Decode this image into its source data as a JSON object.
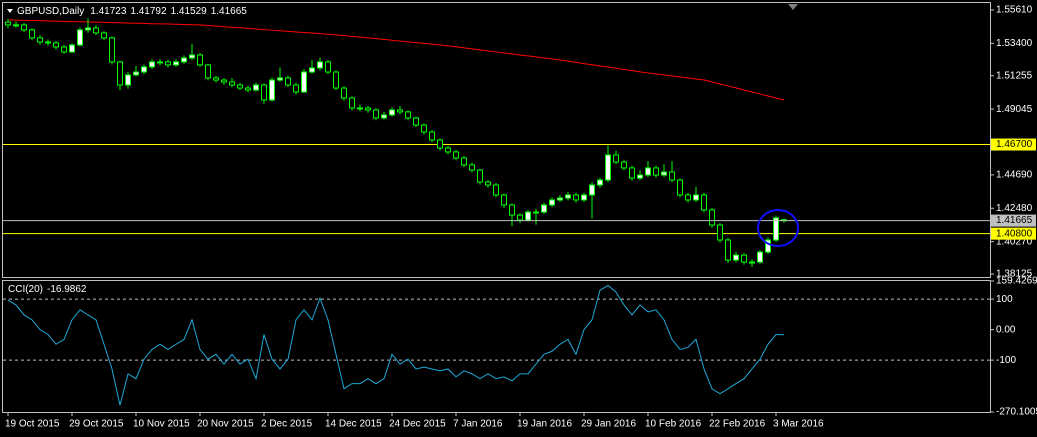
{
  "chart_data": [
    {
      "type": "candlestick",
      "title": "GBPUSD,Daily",
      "open": [
        1.548,
        1.5462,
        1.5462,
        1.5429,
        1.5376,
        1.5349,
        1.5343,
        1.5316,
        1.5283,
        1.5329,
        1.5429,
        1.5442,
        1.5409,
        1.5376,
        1.5217,
        1.5064,
        1.5131,
        1.515,
        1.5184,
        1.5217,
        1.5217,
        1.5197,
        1.5217,
        1.5243,
        1.5263,
        1.5197,
        1.5111,
        1.5097,
        1.5084,
        1.5064,
        1.5044,
        1.5031,
        1.5064,
        1.4965,
        1.5097,
        1.5111,
        1.5064,
        1.5018,
        1.515,
        1.5177,
        1.5217,
        1.515,
        1.5044,
        1.4978,
        1.4912,
        1.4912,
        1.4899,
        1.4846,
        1.4866,
        1.4899,
        1.4886,
        1.4846,
        1.4799,
        1.4753,
        1.47,
        1.4647,
        1.4621,
        1.4581,
        1.4535,
        1.4501,
        1.4422,
        1.4402,
        1.4336,
        1.427,
        1.4203,
        1.417,
        1.4223,
        1.4223,
        1.427,
        1.4303,
        1.4316,
        1.4336,
        1.4303,
        1.4336,
        1.4402,
        1.4435,
        1.4601,
        1.4554,
        1.4515,
        1.4448,
        1.4468,
        1.4515,
        1.4468,
        1.4488,
        1.4435,
        1.4336,
        1.4303,
        1.4336,
        1.4237,
        1.4137,
        1.4038,
        1.3905,
        1.3938,
        1.3892,
        1.3892,
        1.3958,
        1.4038,
        1.41723
      ],
      "high": [
        1.55,
        1.5485,
        1.5475,
        1.544,
        1.5395,
        1.5365,
        1.5355,
        1.533,
        1.534,
        1.5445,
        1.5505,
        1.546,
        1.542,
        1.5385,
        1.5225,
        1.515,
        1.519,
        1.52,
        1.5235,
        1.5235,
        1.523,
        1.5235,
        1.526,
        1.5335,
        1.5275,
        1.5205,
        1.5125,
        1.511,
        1.511,
        1.508,
        1.506,
        1.508,
        1.5075,
        1.5115,
        1.518,
        1.5125,
        1.508,
        1.517,
        1.523,
        1.5245,
        1.523,
        1.516,
        1.5055,
        1.499,
        1.4935,
        1.4925,
        1.491,
        1.4885,
        1.4915,
        1.4925,
        1.4895,
        1.4855,
        1.481,
        1.4765,
        1.471,
        1.466,
        1.4635,
        1.4595,
        1.455,
        1.451,
        1.4435,
        1.4415,
        1.4345,
        1.428,
        1.4215,
        1.4235,
        1.4245,
        1.4285,
        1.432,
        1.4335,
        1.4355,
        1.435,
        1.435,
        1.442,
        1.445,
        1.4665,
        1.463,
        1.457,
        1.453,
        1.45,
        1.456,
        1.453,
        1.454,
        1.456,
        1.4445,
        1.435,
        1.439,
        1.435,
        1.425,
        1.415,
        1.405,
        1.396,
        1.395,
        1.391,
        1.397,
        1.4055,
        1.42,
        1.41792
      ],
      "low": [
        1.544,
        1.5445,
        1.5415,
        1.536,
        1.533,
        1.5325,
        1.53,
        1.527,
        1.5275,
        1.532,
        1.541,
        1.5395,
        1.536,
        1.52,
        1.503,
        1.504,
        1.512,
        1.5135,
        1.517,
        1.5195,
        1.518,
        1.5185,
        1.5205,
        1.523,
        1.5185,
        1.5095,
        1.508,
        1.5065,
        1.505,
        1.503,
        1.5015,
        1.502,
        1.494,
        1.4955,
        1.5085,
        1.505,
        1.5,
        1.501,
        1.514,
        1.516,
        1.5135,
        1.503,
        1.496,
        1.4895,
        1.489,
        1.488,
        1.483,
        1.4835,
        1.4855,
        1.487,
        1.483,
        1.4785,
        1.4735,
        1.4685,
        1.463,
        1.4605,
        1.4565,
        1.452,
        1.4485,
        1.4405,
        1.4385,
        1.432,
        1.425,
        1.413,
        1.415,
        1.416,
        1.414,
        1.421,
        1.4255,
        1.429,
        1.43,
        1.4285,
        1.429,
        1.418,
        1.4385,
        1.442,
        1.454,
        1.45,
        1.443,
        1.4435,
        1.4455,
        1.445,
        1.4455,
        1.442,
        1.432,
        1.4285,
        1.429,
        1.422,
        1.412,
        1.402,
        1.3885,
        1.389,
        1.3875,
        1.386,
        1.388,
        1.3945,
        1.4025,
        1.41529
      ],
      "close": [
        1.5462,
        1.5462,
        1.5429,
        1.5376,
        1.5349,
        1.5343,
        1.5316,
        1.5283,
        1.5329,
        1.5429,
        1.5442,
        1.5409,
        1.5376,
        1.5217,
        1.5064,
        1.5131,
        1.515,
        1.5184,
        1.5217,
        1.5217,
        1.5197,
        1.5217,
        1.5243,
        1.5263,
        1.5197,
        1.5111,
        1.5097,
        1.5084,
        1.5064,
        1.5044,
        1.5031,
        1.5064,
        1.4965,
        1.5097,
        1.5111,
        1.5064,
        1.5018,
        1.515,
        1.5177,
        1.5217,
        1.515,
        1.5044,
        1.4978,
        1.4912,
        1.4912,
        1.4899,
        1.4846,
        1.4866,
        1.4899,
        1.4886,
        1.4846,
        1.4799,
        1.4753,
        1.47,
        1.4647,
        1.4621,
        1.4581,
        1.4535,
        1.4501,
        1.4422,
        1.4402,
        1.4336,
        1.427,
        1.4203,
        1.417,
        1.4223,
        1.4223,
        1.427,
        1.4303,
        1.4316,
        1.4336,
        1.4303,
        1.4336,
        1.4402,
        1.4435,
        1.4601,
        1.4554,
        1.4515,
        1.4448,
        1.4468,
        1.4515,
        1.4468,
        1.4488,
        1.4435,
        1.4336,
        1.4303,
        1.4336,
        1.4237,
        1.4137,
        1.4038,
        1.3905,
        1.3938,
        1.3892,
        1.3892,
        1.3958,
        1.4038,
        1.4184,
        1.41665
      ],
      "ma_values": [
        1.5495,
        1.5494,
        1.5492,
        1.5491,
        1.549,
        1.5488,
        1.5487,
        1.5485,
        1.5484,
        1.5483,
        1.5481,
        1.548,
        1.5479,
        1.5477,
        1.5476,
        1.5474,
        1.5473,
        1.5472,
        1.547,
        1.5469,
        1.5468,
        1.5466,
        1.5465,
        1.5463,
        1.5462,
        1.5458,
        1.5454,
        1.545,
        1.5446,
        1.5443,
        1.5439,
        1.5435,
        1.5431,
        1.5427,
        1.5423,
        1.5419,
        1.5415,
        1.5412,
        1.5408,
        1.5404,
        1.54,
        1.5396,
        1.5391,
        1.5386,
        1.5381,
        1.5376,
        1.5371,
        1.5366,
        1.536,
        1.5355,
        1.535,
        1.5345,
        1.534,
        1.5335,
        1.533,
        1.5323,
        1.5317,
        1.531,
        1.5303,
        1.5297,
        1.529,
        1.5283,
        1.5277,
        1.527,
        1.5263,
        1.5257,
        1.525,
        1.5243,
        1.5237,
        1.523,
        1.5222,
        1.5214,
        1.5206,
        1.5198,
        1.519,
        1.5183,
        1.5175,
        1.5167,
        1.5159,
        1.5151,
        1.5144,
        1.5138,
        1.5131,
        1.5124,
        1.5118,
        1.5111,
        1.5104,
        1.5098,
        1.5085,
        1.5071,
        1.5058,
        1.5045,
        1.5031,
        1.5018,
        1.5005,
        1.4991,
        1.4978,
        1.4965
      ],
      "ma_color": "#ff0000",
      "up_color": "#ffffff",
      "down_color": "#000000",
      "wick_color": "#00ff00",
      "hlines": [
        {
          "value": 1.467,
          "label": "1.46700"
        },
        {
          "value": 1.408,
          "label": "1.40800"
        }
      ],
      "hline_color": "#ffff00",
      "price_line_color": "#c0c0c0",
      "ylim": [
        1.3793,
        1.5607
      ],
      "yticks": [
        {
          "value": 1.5561,
          "label": "1.55610"
        },
        {
          "value": 1.534,
          "label": "1.53400"
        },
        1.51255,
        1.49045,
        {
          "value": 1.4469,
          "label": "1.44690"
        },
        {
          "value": 1.4248,
          "label": "1.42480"
        },
        {
          "value": 1.4027,
          "label": "1.40270"
        },
        1.38125
      ],
      "grid": false
    },
    {
      "type": "line",
      "title": "CCI(20)",
      "categories": [
        "19 Oct 2015",
        null,
        null,
        null,
        null,
        null,
        null,
        null,
        "29 Oct 2015",
        null,
        null,
        null,
        null,
        null,
        null,
        null,
        "10 Nov 2015",
        null,
        null,
        null,
        null,
        null,
        null,
        null,
        "20 Nov 2015",
        null,
        null,
        null,
        null,
        null,
        null,
        null,
        "2 Dec 2015",
        null,
        null,
        null,
        null,
        null,
        null,
        null,
        "14 Dec 2015",
        null,
        null,
        null,
        null,
        null,
        null,
        null,
        "24 Dec 2015",
        null,
        null,
        null,
        null,
        null,
        null,
        null,
        "7 Jan 2016",
        null,
        null,
        null,
        null,
        null,
        null,
        null,
        "19 Jan 2016",
        null,
        null,
        null,
        null,
        null,
        null,
        null,
        "29 Jan 2016",
        null,
        null,
        null,
        null,
        null,
        null,
        null,
        "10 Feb 2016",
        null,
        null,
        null,
        null,
        null,
        null,
        null,
        "22 Feb 2016",
        null,
        null,
        null,
        null,
        null,
        null,
        null,
        "3 Mar 2016",
        null
      ],
      "values": [
        97,
        81,
        48,
        32,
        0,
        -16,
        -48,
        -32,
        32,
        65,
        48,
        32,
        -48,
        -129,
        -248,
        -145,
        -161,
        -97,
        -65,
        -48,
        -65,
        -48,
        -32,
        32,
        -65,
        -97,
        -81,
        -113,
        -81,
        -113,
        -97,
        -161,
        -16,
        -97,
        -129,
        -97,
        32,
        65,
        32,
        103,
        32,
        -81,
        -194,
        -177,
        -177,
        -161,
        -177,
        -161,
        -81,
        -113,
        -97,
        -129,
        -123,
        -129,
        -135,
        -129,
        -155,
        -135,
        -145,
        -161,
        -145,
        -161,
        -155,
        -168,
        -145,
        -145,
        -113,
        -81,
        -71,
        -48,
        -32,
        -81,
        0,
        32,
        129,
        145,
        123,
        81,
        48,
        81,
        58,
        65,
        32,
        -32,
        -65,
        -58,
        -32,
        -129,
        -194,
        -210,
        -194,
        -177,
        -161,
        -129,
        -97,
        -48,
        -16,
        -16.9862
      ],
      "color": "#20a8d8",
      "ylim": [
        -270.1005,
        159.4269
      ],
      "yticks": [
        159.4269,
        100,
        {
          "value": 0,
          "label": "0.00"
        },
        -100,
        -270.1005
      ],
      "levels": [
        100,
        -100
      ],
      "grid": false
    }
  ]
}
